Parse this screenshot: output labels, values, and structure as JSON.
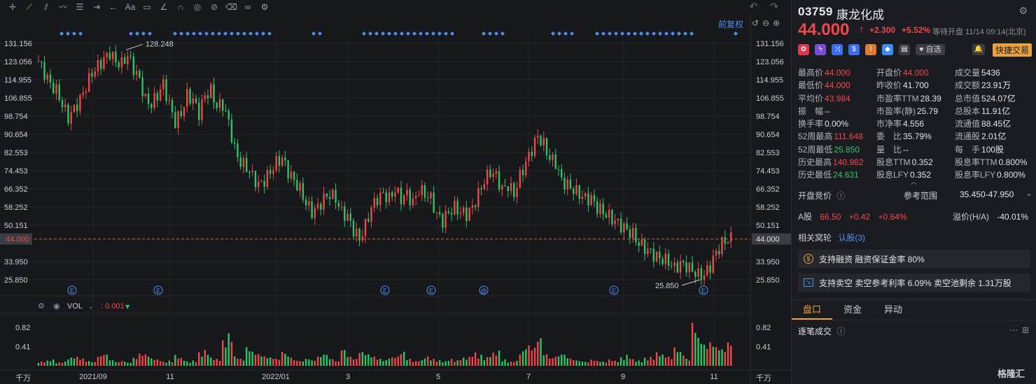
{
  "toolbar": {
    "icons": [
      "crosshair-icon",
      "trend-line-icon",
      "dropdown-caret-icon",
      "channel-icon",
      "dropdown-caret-icon",
      "wave-icon",
      "dropdown-caret-icon",
      "fib-icon",
      "dropdown-caret-icon",
      "measure-icon",
      "dropdown-caret-icon",
      "back-arrow-icon",
      "dropdown-caret-icon",
      "text-icon",
      "note-icon",
      "angle-icon",
      "magnet-icon",
      "eye-icon",
      "hide-icon",
      "trash-icon",
      "link-icon",
      "settings-icon"
    ],
    "text_tool": "Aa",
    "undo": "↶",
    "redo": "↷"
  },
  "chart": {
    "adjust_label": "前复权",
    "price_line_label": "44.000",
    "high_annotation": "128.248",
    "low_annotation": "25.850",
    "vol_label": "VOL",
    "vol_value": ": 0.001",
    "vol_unit": "千万"
  },
  "chart_data": {
    "type": "candlestick",
    "y_ticks": [
      "131.156",
      "123.056",
      "114.955",
      "106.855",
      "98.754",
      "90.654",
      "82.553",
      "74.453",
      "66.352",
      "58.252",
      "50.151",
      "44.000",
      "33.950",
      "25.850"
    ],
    "x_ticks": [
      "2021/09",
      "11",
      "2022/01",
      "3",
      "5",
      "7",
      "9",
      "11"
    ],
    "vol_ticks": [
      "0.82",
      "0.41"
    ],
    "event_markers": [
      "E",
      "E",
      "E",
      "E",
      "@",
      "E",
      "E"
    ],
    "close_path": [
      123,
      118,
      113,
      110,
      104,
      98,
      102,
      106,
      112,
      118,
      121,
      124,
      127,
      123,
      122,
      126,
      120,
      115,
      106,
      104,
      108,
      113,
      104,
      96,
      100,
      108,
      106,
      100,
      108,
      110,
      103,
      104,
      96,
      84,
      78,
      76,
      72,
      68,
      70,
      74,
      78,
      80,
      74,
      70,
      66,
      60,
      56,
      58,
      62,
      64,
      62,
      56,
      54,
      48,
      44,
      50,
      58,
      62,
      64,
      62,
      66,
      62,
      64,
      60,
      66,
      64,
      62,
      55,
      52,
      56,
      58,
      56,
      55,
      58,
      64,
      70,
      74,
      72,
      66,
      68,
      64,
      72,
      78,
      84,
      90,
      86,
      80,
      78,
      70,
      68,
      66,
      64,
      62,
      62,
      58,
      56,
      54,
      52,
      50,
      48,
      46,
      42,
      40,
      38,
      36,
      35,
      34,
      31,
      33,
      32,
      30,
      28,
      28,
      32,
      38,
      42,
      44
    ],
    "volume_path": [
      0.1,
      0.12,
      0.15,
      0.08,
      0.1,
      0.2,
      0.22,
      0.18,
      0.12,
      0.1,
      0.25,
      0.3,
      0.15,
      0.1,
      0.12,
      0.08,
      0.2,
      0.3,
      0.28,
      0.18,
      0.15,
      0.1,
      0.12,
      0.25,
      0.18,
      0.1,
      0.12,
      0.3,
      0.35,
      0.18,
      0.15,
      0.55,
      0.7,
      0.2,
      0.15,
      0.4,
      0.3,
      0.25,
      0.2,
      0.18,
      0.15,
      0.3,
      0.2,
      0.12,
      0.1,
      0.15,
      0.12,
      0.2,
      0.25,
      0.15,
      0.1,
      0.35,
      0.2,
      0.15,
      0.3,
      0.25,
      0.2,
      0.15,
      0.12,
      0.18,
      0.2,
      0.3,
      0.15,
      0.1,
      0.12,
      0.2,
      0.15,
      0.12,
      0.1,
      0.15,
      0.12,
      0.18,
      0.2,
      0.3,
      0.25,
      0.2,
      0.3,
      0.35,
      0.15,
      0.1,
      0.12,
      0.35,
      0.5,
      0.45,
      0.7,
      0.3,
      0.2,
      0.25,
      0.3,
      0.2,
      0.15,
      0.12,
      0.1,
      0.15,
      0.12,
      0.1,
      0.15,
      0.12,
      0.2,
      0.25,
      0.15,
      0.12,
      0.18,
      0.2,
      0.3,
      0.25,
      0.2,
      0.4,
      0.3,
      0.15,
      0.92,
      0.6,
      0.45,
      0.5,
      0.4,
      0.35,
      0.5
    ]
  },
  "panel": {
    "code": "03759",
    "name": "康龙化成",
    "price": "44.000",
    "change": "+2.300",
    "change_pct": "+5.52%",
    "status": "等待开盘 11/14 09:14(北京)",
    "watch_label": "自选",
    "quick_trade": "快捷交易",
    "stats": [
      [
        {
          "label": "最高价",
          "value": "44.000",
          "c": "r"
        },
        {
          "label": "开盘价",
          "value": "44.000",
          "c": "r"
        },
        {
          "label": "成交量",
          "value": "5436",
          "c": "w"
        }
      ],
      [
        {
          "label": "最低价",
          "value": "44.000",
          "c": "r"
        },
        {
          "label": "昨收价",
          "value": "41.700",
          "c": "w"
        },
        {
          "label": "成交额",
          "value": "23.91万",
          "c": "w"
        }
      ],
      [
        {
          "label": "平均价",
          "value": "43.984",
          "c": "r"
        },
        {
          "label": "市盈率TTM",
          "value": "28.39",
          "c": "w"
        },
        {
          "label": "总市值",
          "value": "524.07亿",
          "c": "w"
        }
      ],
      [
        {
          "label": "振　幅",
          "value": "--",
          "c": "w"
        },
        {
          "label": "市盈率(静)",
          "value": "25.79",
          "c": "w"
        },
        {
          "label": "总股本",
          "value": "11.91亿",
          "c": "w"
        }
      ],
      [
        {
          "label": "换手率",
          "value": "0.00%",
          "c": "w"
        },
        {
          "label": "市净率",
          "value": "4.556",
          "c": "w"
        },
        {
          "label": "流通值",
          "value": "88.45亿",
          "c": "w"
        }
      ],
      [
        {
          "label": "52周最高",
          "value": "111.648",
          "c": "r"
        },
        {
          "label": "委　比",
          "value": "35.79%",
          "c": "w"
        },
        {
          "label": "流通股",
          "value": "2.01亿",
          "c": "w"
        }
      ],
      [
        {
          "label": "52周最低",
          "value": "25.850",
          "c": "g"
        },
        {
          "label": "量　比",
          "value": "--",
          "c": "w"
        },
        {
          "label": "每　手",
          "value": "100股",
          "c": "w"
        }
      ],
      [
        {
          "label": "历史最高",
          "value": "140.982",
          "c": "r"
        },
        {
          "label": "股息TTM",
          "value": "0.352",
          "c": "w"
        },
        {
          "label": "股息率TTM",
          "value": "0.800%",
          "c": "w"
        }
      ],
      [
        {
          "label": "历史最低",
          "value": "24.631",
          "c": "g"
        },
        {
          "label": "股息LFY",
          "value": "0.352",
          "c": "w"
        },
        {
          "label": "股息率LFY",
          "value": "0.800%",
          "c": "w"
        }
      ]
    ],
    "auction_label": "开盘竞价",
    "ref_label": "参考范围",
    "ref_value": "35.450-47.950",
    "a_label": "A股",
    "a_price": "66.50",
    "a_change": "+0.42",
    "a_pct": "+0.64%",
    "premium_label": "溢价(H/A)",
    "premium_value": "-40.01%",
    "related_label": "相关窝轮",
    "related_value": "认股(3)",
    "margin_text": "支持融资 融资保证金率 80%",
    "short_text": "支持卖空 卖空参考利率 6.09% 卖空池剩余 1.31万股",
    "tabs": [
      "盘口",
      "资金",
      "异动"
    ],
    "ticks_label": "逐笔成交",
    "logo": "格隆汇"
  },
  "colors": {
    "up": "#f04848",
    "down": "#2fc466",
    "accent": "#e9a13b",
    "link": "#4f8ff0"
  }
}
